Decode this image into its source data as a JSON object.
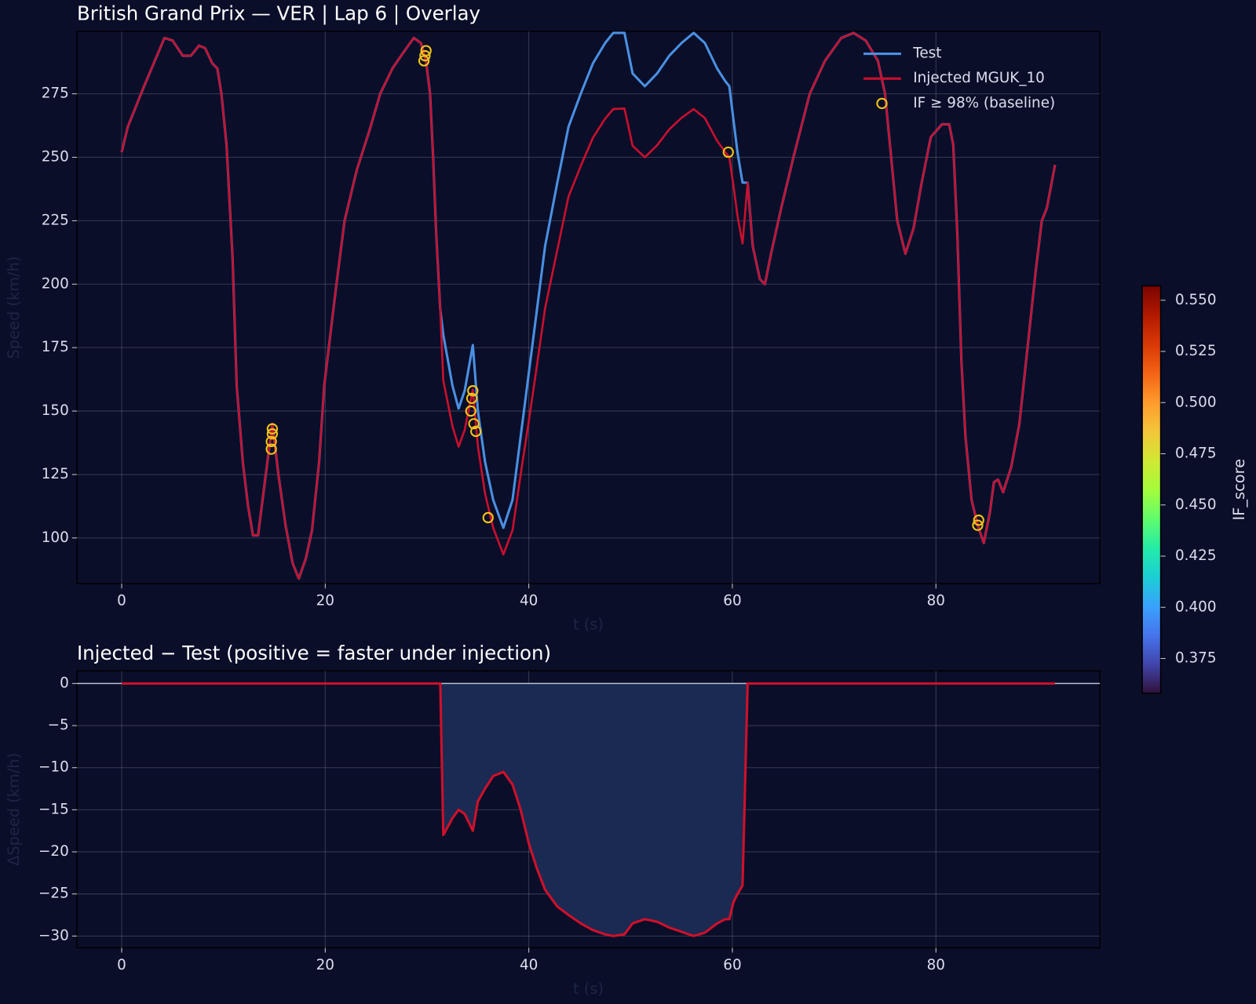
{
  "chart_data": [
    {
      "type": "line",
      "title": "British Grand Prix — VER  |  Lap 6  |  Overlay",
      "x_label": "t (s)",
      "y_label": "Speed (km/h)",
      "x": [
        0,
        0.6,
        2.2,
        4.2,
        5,
        6,
        6.8,
        7.6,
        8.2,
        8.9,
        9.4,
        9.8,
        10.3,
        10.9,
        11.3,
        11.9,
        12.4,
        12.9,
        13.4,
        14,
        14.8,
        15.4,
        16.1,
        16.8,
        17.4,
        18.1,
        18.7,
        19.4,
        19.9,
        20.5,
        21.1,
        21.9,
        23.1,
        24.3,
        25.4,
        26.6,
        27.8,
        28.7,
        29.4,
        29.9,
        30.3,
        30.6,
        30.9,
        31.3,
        31.6,
        32.5,
        33.1,
        33.7,
        34.5,
        35,
        35.7,
        36.5,
        37.5,
        38.4,
        39.2,
        40,
        40.8,
        41.6,
        42.8,
        43.9,
        45.1,
        46.3,
        47.5,
        48.3,
        49.4,
        50.2,
        51.4,
        52.6,
        53.8,
        55,
        56.2,
        57.3,
        58.5,
        59.3,
        59.7,
        60.1,
        60.5,
        61,
        61.5,
        62,
        62.7,
        63.2,
        63.8,
        64.8,
        66,
        67.6,
        69.1,
        70.7,
        71.9,
        73.1,
        74.3,
        75,
        75.6,
        76.2,
        77,
        77.8,
        78.6,
        79.5,
        80.6,
        81.3,
        81.7,
        82.1,
        82.5,
        82.9,
        83.5,
        84.1,
        84.7,
        85.3,
        85.7,
        86.1,
        86.6,
        87.4,
        88.2,
        89,
        89.8,
        90.4,
        90.9,
        91.7
      ],
      "series": [
        {
          "name": "Test",
          "color": "#4a90e2",
          "values": [
            252,
            262,
            278,
            297,
            296,
            290,
            290,
            294,
            293,
            287,
            285,
            275,
            255,
            210,
            160,
            130,
            113,
            101,
            101,
            120,
            145,
            125,
            105,
            90,
            84,
            92,
            103,
            130,
            160,
            180,
            200,
            225,
            245,
            260,
            275,
            285,
            292,
            297,
            295,
            288,
            275,
            250,
            220,
            190,
            180,
            160,
            151,
            158,
            176,
            150,
            130,
            115,
            104,
            115,
            140,
            165,
            190,
            215,
            240,
            262,
            275,
            287,
            295,
            299,
            299,
            283,
            278,
            283,
            290,
            295,
            299,
            295,
            285,
            280,
            278,
            265,
            252,
            240,
            240,
            215,
            202,
            200,
            212,
            230,
            250,
            275,
            288,
            297,
            299,
            296,
            288,
            275,
            250,
            225,
            212,
            222,
            240,
            258,
            263,
            263,
            255,
            220,
            170,
            140,
            115,
            105,
            98,
            110,
            122,
            123,
            118,
            128,
            145,
            175,
            205,
            225,
            230,
            247
          ]
        },
        {
          "name": "Injected MGUK_10",
          "color": "#c8102e",
          "values": [
            252,
            262,
            278,
            297,
            296,
            290,
            290,
            294,
            293,
            287,
            285,
            275,
            255,
            210,
            160,
            130,
            113,
            101,
            101,
            120,
            145,
            125,
            105,
            90,
            84,
            92,
            103,
            130,
            160,
            180,
            200,
            225,
            245,
            260,
            275,
            285,
            292,
            297,
            295,
            288,
            275,
            250,
            220,
            190,
            162,
            144,
            136,
            142.5,
            158.5,
            136,
            117.5,
            104,
            93.5,
            103,
            125,
            146,
            168,
            190.5,
            213.5,
            234.5,
            246.5,
            257.7,
            265.2,
            269,
            269.2,
            254.5,
            250,
            254.7,
            261,
            265.5,
            269,
            265.4,
            256.5,
            252,
            250,
            239,
            227,
            216,
            240,
            215,
            202,
            200,
            212,
            230,
            250,
            275,
            288,
            297,
            299,
            296,
            288,
            275,
            250,
            225,
            212,
            222,
            240,
            258,
            263,
            263,
            255,
            220,
            170,
            140,
            115,
            105,
            98,
            110,
            122,
            123,
            118,
            128,
            145,
            175,
            205,
            225,
            230,
            247
          ]
        }
      ],
      "points": {
        "name": "IF ≥ 98% (baseline)",
        "color": "#f5c518",
        "x": [
          14.7,
          14.7,
          14.8,
          14.8,
          29.7,
          29.8,
          29.9,
          34.3,
          34.4,
          34.5,
          34.6,
          34.8,
          36,
          59.6,
          84.1,
          84.2
        ],
        "y": [
          135,
          138,
          141,
          143,
          288,
          290,
          292,
          150,
          155,
          158,
          145,
          142,
          108,
          252,
          105,
          107
        ]
      },
      "xlim": [
        -4.4,
        96.1
      ],
      "ylim": [
        82,
        299.6
      ],
      "xticks": [
        0,
        20,
        40,
        60,
        80
      ],
      "yticks": [
        100,
        125,
        150,
        175,
        200,
        225,
        250,
        275
      ],
      "grid": true,
      "legend": "upper right",
      "colorbar": {
        "label": "IF_score",
        "lim": [
          0.358,
          0.557
        ],
        "ticks": [
          {
            "value": 0.55,
            "label": "0.550"
          },
          0.525,
          {
            "value": 0.5,
            "label": "0.500"
          },
          0.475,
          {
            "value": 0.45,
            "label": "0.450"
          },
          0.425,
          {
            "value": 0.4,
            "label": "0.400"
          },
          0.375
        ],
        "colors": [
          "#30123b",
          "#4145ab",
          "#4675ed",
          "#39a2fc",
          "#1bcfd4",
          "#24eca6",
          "#61fc6c",
          "#a4fc3b",
          "#d1e834",
          "#f3c63a",
          "#fe9b2d",
          "#f36315",
          "#d93806",
          "#b11901",
          "#7a0402"
        ]
      }
    },
    {
      "type": "area",
      "title": "Injected − Test (positive = faster under injection)",
      "x_label": "t (s)",
      "y_label": "ΔSpeed (km/h)",
      "x": [
        0,
        31.3,
        31.6,
        32.5,
        33.1,
        33.7,
        34.5,
        35,
        35.7,
        36.5,
        37.5,
        38.4,
        39.2,
        40,
        40.8,
        41.6,
        42.8,
        43.9,
        45.1,
        46.3,
        47.5,
        48.3,
        49.4,
        50.2,
        51.4,
        52.6,
        53.8,
        55,
        56.2,
        57.3,
        58.5,
        59.3,
        59.7,
        60.1,
        60.5,
        61,
        61.5,
        91.7
      ],
      "values": [
        0,
        0,
        -18,
        -16,
        -15,
        -15.5,
        -17.5,
        -14,
        -12.5,
        -11,
        -10.5,
        -12,
        -15,
        -19,
        -22,
        -24.5,
        -26.5,
        -27.5,
        -28.5,
        -29.3,
        -29.8,
        -30,
        -29.8,
        -28.5,
        -28,
        -28.3,
        -29,
        -29.5,
        -30,
        -29.6,
        -28.5,
        -28,
        -28,
        -26,
        -25,
        -24,
        0,
        0
      ],
      "color": "#d0102a",
      "fill_color": "#1b2a52",
      "xlim": [
        -4.4,
        96.1
      ],
      "ylim": [
        -31.4,
        1.5
      ],
      "xticks": [
        0,
        20,
        40,
        60,
        80
      ],
      "yticks": [
        0,
        {
          "value": -5,
          "label": "−5"
        },
        {
          "value": -10,
          "label": "−10"
        },
        {
          "value": -15,
          "label": "−15"
        },
        {
          "value": -20,
          "label": "−20"
        },
        {
          "value": -25,
          "label": "−25"
        },
        {
          "value": -30,
          "label": "−30"
        }
      ],
      "grid": true
    }
  ]
}
